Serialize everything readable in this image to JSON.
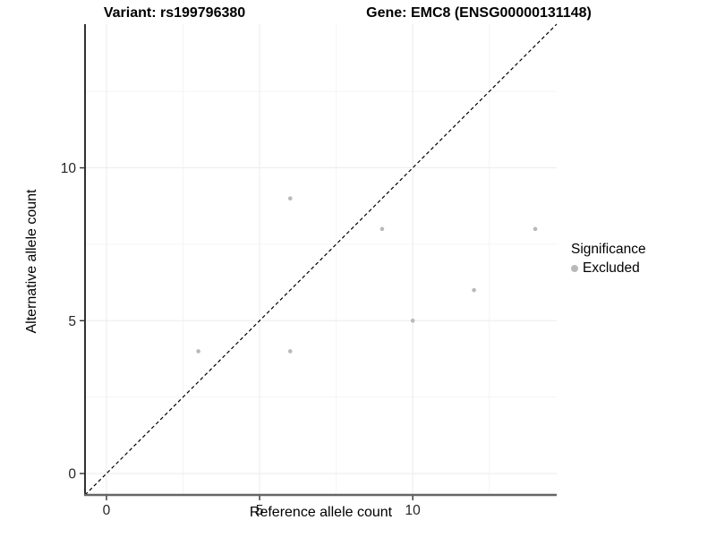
{
  "titles": {
    "left": "Variant: rs199796380",
    "right": "Gene: EMC8 (ENSG00000131148)"
  },
  "legend": {
    "title": "Significance",
    "position": "right",
    "items": [
      {
        "label": "Excluded",
        "color": "#b9b9b9"
      }
    ]
  },
  "colors": {
    "background": "#ffffff",
    "grid_major": "#ebebeb",
    "grid_minor": "#f4f4f4",
    "axis_line_left": "#1a1a1a",
    "axis_line_bottom": "#666666",
    "tick_mark": "#333333",
    "tick_label": "#262626",
    "point": "#b9b9b9",
    "identity_line": "#000000"
  },
  "chart_data": {
    "type": "scatter",
    "title_left": "Variant: rs199796380",
    "title_right": "Gene: EMC8 (ENSG00000131148)",
    "xlabel": "Reference allele count",
    "ylabel": "Alternative allele count",
    "xlim": [
      -0.7,
      14.7
    ],
    "ylim": [
      -0.7,
      14.7
    ],
    "x_major_ticks": [
      0,
      5,
      10
    ],
    "y_major_ticks": [
      0,
      5,
      10
    ],
    "x_minor_ticks": [
      2.5,
      7.5,
      12.5
    ],
    "y_minor_ticks": [
      2.5,
      7.5,
      12.5
    ],
    "grid": true,
    "legend_position": "right",
    "identity_line": {
      "slope": 1,
      "intercept": 0,
      "style": "dashed"
    },
    "series": [
      {
        "name": "Excluded",
        "color": "#b9b9b9",
        "points": [
          {
            "x": 3,
            "y": 4
          },
          {
            "x": 6,
            "y": 4
          },
          {
            "x": 6,
            "y": 9
          },
          {
            "x": 9,
            "y": 8
          },
          {
            "x": 10,
            "y": 5
          },
          {
            "x": 12,
            "y": 6
          },
          {
            "x": 14,
            "y": 8
          }
        ]
      }
    ]
  }
}
